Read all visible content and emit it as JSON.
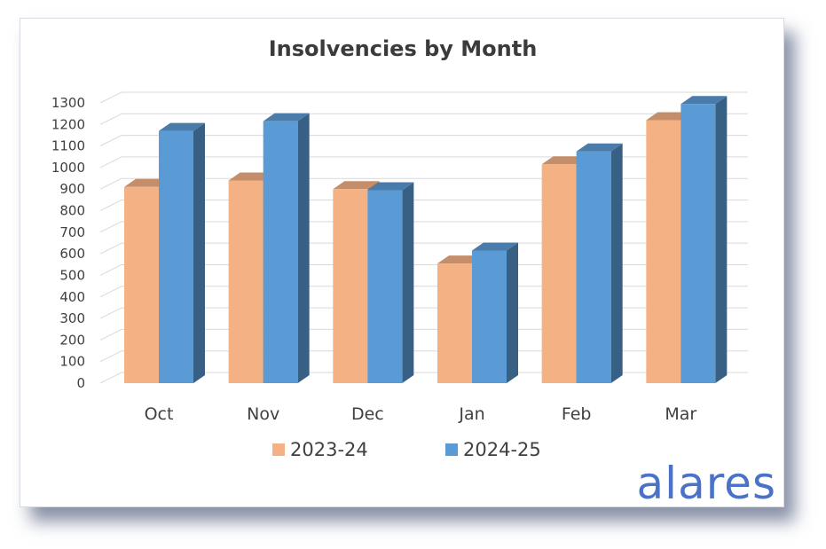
{
  "chart_data": {
    "type": "bar",
    "title": "Insolvencies by Month",
    "xlabel": "",
    "ylabel": "",
    "categories": [
      "Oct",
      "Nov",
      "Dec",
      "Jan",
      "Feb",
      "Mar"
    ],
    "series": [
      {
        "name": "2023-24",
        "color": "#f4b183",
        "values": [
          910,
          940,
          900,
          555,
          1015,
          1220
        ]
      },
      {
        "name": "2024-25",
        "color": "#5b9bd5",
        "values": [
          1170,
          1215,
          895,
          615,
          1075,
          1295
        ]
      }
    ],
    "ylim": [
      0,
      1300
    ],
    "yticks": [
      "0",
      "100",
      "200",
      "300",
      "400",
      "500",
      "600",
      "700",
      "800",
      "900",
      "1000",
      "1100",
      "1200",
      "1300"
    ],
    "grid": true,
    "legend": "bottom",
    "style": "3d-clustered-column"
  },
  "brand": {
    "text": "alares",
    "color": "#4a72c8"
  }
}
